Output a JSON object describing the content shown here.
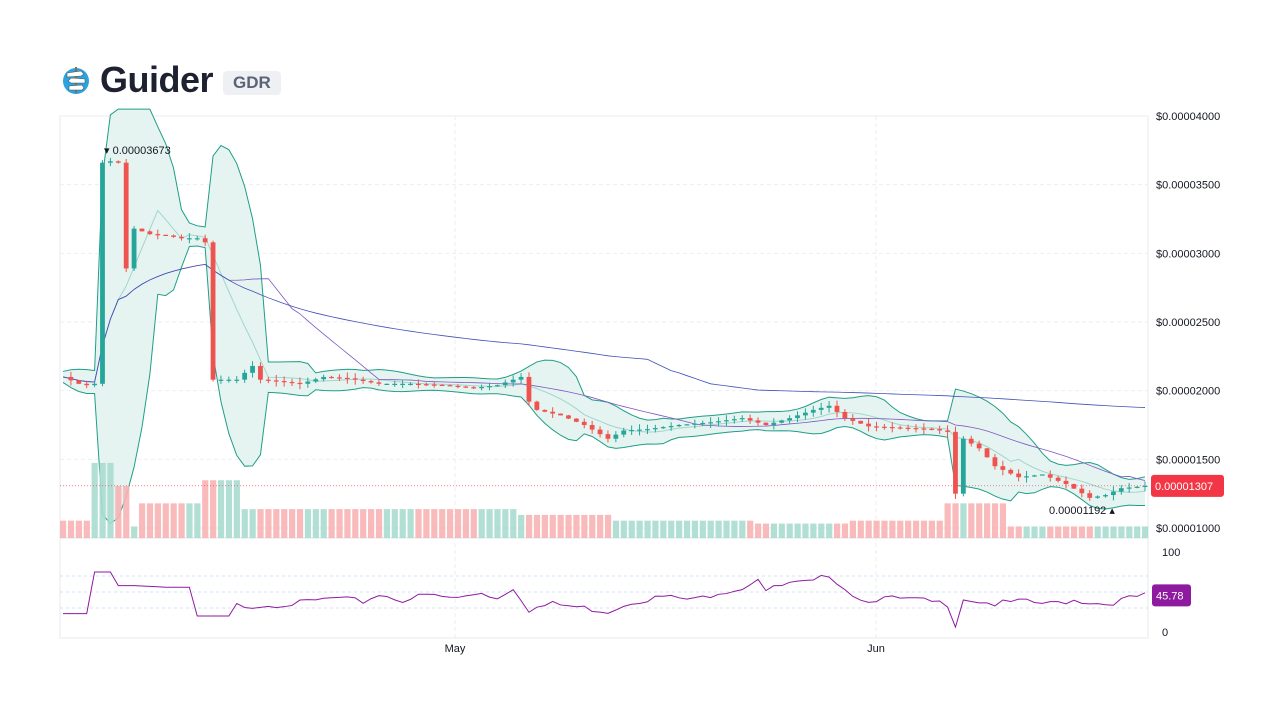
{
  "header": {
    "name": "Guider",
    "ticker": "GDR",
    "logo_icon": "guider-signpost-icon"
  },
  "colors": {
    "up": "#26a69a",
    "down": "#ef5350",
    "band_fill": "#e6f4f1",
    "band_line": "#1e9e86",
    "ma_short": "#7e57c2",
    "ma_long": "#3f51b5",
    "rsi": "#8e1aa0",
    "price_badge": "#f23645",
    "rsi_badge": "#8e1aa0"
  },
  "chart_data": {
    "type": "candlestick",
    "ylim": [
      1e-05,
      4e-05
    ],
    "y_ticks": [
      "$0.00004000",
      "$0.00003500",
      "$0.00003000",
      "$0.00002500",
      "$0.00002000",
      "$0.00001500",
      "$0.00001000"
    ],
    "x_ticks": [
      "May",
      "Jun"
    ],
    "series_price": [
      [
        0,
        2.1e-05
      ],
      [
        2,
        2.05e-05
      ],
      [
        3,
        2.04e-05
      ],
      [
        4,
        2.05e-05
      ],
      [
        5,
        3.66e-05
      ],
      [
        6,
        3.67e-05
      ],
      [
        7,
        3.66e-05
      ],
      [
        8,
        2.89e-05
      ],
      [
        9,
        3.18e-05
      ],
      [
        11,
        3.14e-05
      ],
      [
        13,
        3.13e-05
      ],
      [
        15,
        3.11e-05
      ],
      [
        17,
        3.11e-05
      ],
      [
        18,
        3.08e-05
      ],
      [
        19,
        2.08e-05
      ],
      [
        22,
        2.08e-05
      ],
      [
        24,
        2.18e-05
      ],
      [
        25,
        2.08e-05
      ],
      [
        27,
        2.07e-05
      ],
      [
        30,
        2.05e-05
      ],
      [
        33,
        2.1e-05
      ],
      [
        36,
        2.09e-05
      ],
      [
        40,
        2.05e-05
      ],
      [
        44,
        2.05e-05
      ],
      [
        48,
        2.04e-05
      ],
      [
        52,
        2.02e-05
      ],
      [
        55,
        2.04e-05
      ],
      [
        58,
        2.1e-05
      ],
      [
        59,
        1.92e-05
      ],
      [
        60,
        1.86e-05
      ],
      [
        63,
        1.82e-05
      ],
      [
        66,
        1.75e-05
      ],
      [
        69,
        1.65e-05
      ],
      [
        71,
        1.71e-05
      ],
      [
        74,
        1.72e-05
      ],
      [
        78,
        1.75e-05
      ],
      [
        82,
        1.77e-05
      ],
      [
        86,
        1.8e-05
      ],
      [
        89,
        1.75e-05
      ],
      [
        92,
        1.8e-05
      ],
      [
        95,
        1.86e-05
      ],
      [
        97,
        1.89e-05
      ],
      [
        99,
        1.8e-05
      ],
      [
        102,
        1.74e-05
      ],
      [
        106,
        1.73e-05
      ],
      [
        110,
        1.72e-05
      ],
      [
        112,
        1.7e-05
      ],
      [
        113,
        1.25e-05
      ],
      [
        114,
        1.65e-05
      ],
      [
        116,
        1.58e-05
      ],
      [
        118,
        1.45e-05
      ],
      [
        121,
        1.37e-05
      ],
      [
        124,
        1.39e-05
      ],
      [
        127,
        1.32e-05
      ],
      [
        130,
        1.22e-05
      ],
      [
        132,
        1.24e-05
      ],
      [
        134,
        1.29e-05
      ],
      [
        136,
        1.3e-05
      ],
      [
        137,
        1.307e-05
      ]
    ],
    "high_marker": "0.00003673",
    "low_marker": "0.00001192",
    "last_price": "0.00001307",
    "rsi": {
      "ylim": [
        0,
        100
      ],
      "ticks": [
        "100",
        "0"
      ],
      "last": "45.78",
      "series": [
        [
          0,
          23
        ],
        [
          3,
          23
        ],
        [
          4,
          75
        ],
        [
          6,
          75
        ],
        [
          7,
          58
        ],
        [
          9,
          58
        ],
        [
          13,
          56
        ],
        [
          16,
          56
        ],
        [
          17,
          20
        ],
        [
          20,
          20
        ],
        [
          21,
          20
        ],
        [
          22,
          33
        ],
        [
          24,
          33
        ],
        [
          30,
          36
        ],
        [
          34,
          42
        ],
        [
          38,
          38
        ],
        [
          40,
          47
        ],
        [
          43,
          40
        ],
        [
          46,
          46
        ],
        [
          50,
          42
        ],
        [
          53,
          50
        ],
        [
          55,
          42
        ],
        [
          57,
          56
        ],
        [
          59,
          28
        ],
        [
          62,
          35
        ],
        [
          66,
          30
        ],
        [
          69,
          26
        ],
        [
          72,
          38
        ],
        [
          76,
          44
        ],
        [
          80,
          40
        ],
        [
          83,
          50
        ],
        [
          86,
          55
        ],
        [
          88,
          68
        ],
        [
          89,
          52
        ],
        [
          92,
          60
        ],
        [
          95,
          62
        ],
        [
          97,
          72
        ],
        [
          99,
          55
        ],
        [
          101,
          40
        ],
        [
          104,
          42
        ],
        [
          108,
          40
        ],
        [
          112,
          35
        ],
        [
          113,
          10
        ],
        [
          114,
          42
        ],
        [
          118,
          35
        ],
        [
          121,
          38
        ],
        [
          125,
          35
        ],
        [
          128,
          40
        ],
        [
          132,
          35
        ],
        [
          135,
          42
        ],
        [
          137,
          45.78
        ]
      ]
    },
    "volume": {
      "levels": [
        [
          0,
          0.06
        ],
        [
          4,
          0.26
        ],
        [
          7,
          0.18
        ],
        [
          9,
          0.04
        ],
        [
          10,
          0.12
        ],
        [
          18,
          0.2
        ],
        [
          23,
          0.1
        ],
        [
          36,
          0.1
        ],
        [
          58,
          0.08
        ],
        [
          70,
          0.06
        ],
        [
          88,
          0.05
        ],
        [
          100,
          0.06
        ],
        [
          112,
          0.12
        ],
        [
          120,
          0.04
        ],
        [
          137,
          0.04
        ]
      ]
    }
  }
}
